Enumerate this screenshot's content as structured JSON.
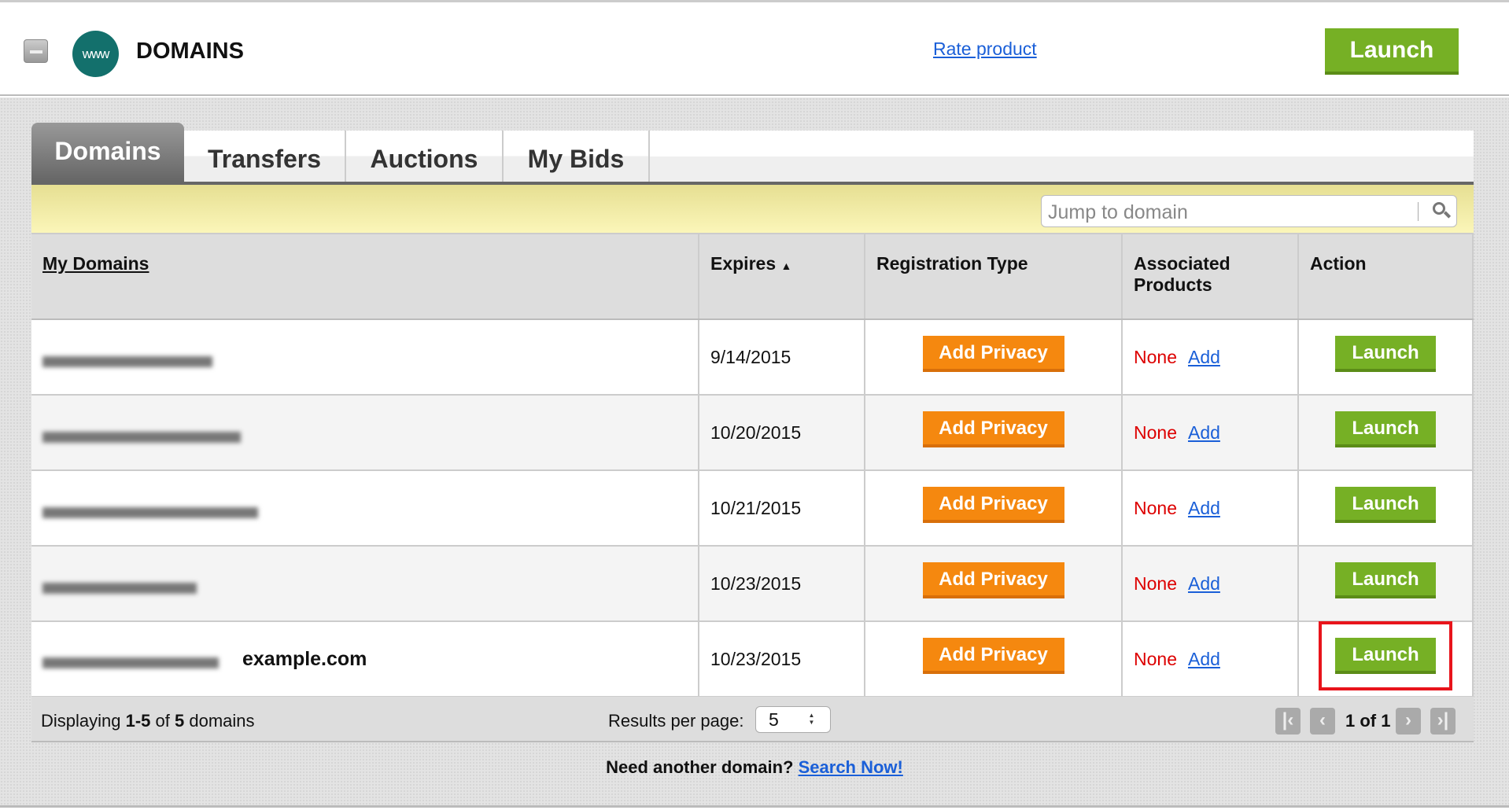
{
  "header": {
    "title": "DOMAINS",
    "logo_text": "www",
    "rate_link": "Rate product",
    "launch_label": "Launch"
  },
  "tabs": [
    {
      "label": "Domains",
      "active": true
    },
    {
      "label": "Transfers"
    },
    {
      "label": "Auctions"
    },
    {
      "label": "My Bids"
    }
  ],
  "search": {
    "placeholder": "Jump to domain"
  },
  "table": {
    "headers": {
      "domain": "My Domains",
      "expires": "Expires",
      "expires_sort": "▲",
      "reg_type": "Registration Type",
      "assoc": "Associated Products",
      "action": "Action"
    },
    "rows": [
      {
        "expires": "9/14/2015",
        "privacy": "Add Privacy",
        "assoc": "None",
        "add": "Add",
        "action": "Launch"
      },
      {
        "expires": "10/20/2015",
        "privacy": "Add Privacy",
        "assoc": "None",
        "add": "Add",
        "action": "Launch"
      },
      {
        "expires": "10/21/2015",
        "privacy": "Add Privacy",
        "assoc": "None",
        "add": "Add",
        "action": "Launch"
      },
      {
        "expires": "10/23/2015",
        "privacy": "Add Privacy",
        "assoc": "None",
        "add": "Add",
        "action": "Launch"
      },
      {
        "expires": "10/23/2015",
        "label": "example.com",
        "privacy": "Add Privacy",
        "assoc": "None",
        "add": "Add",
        "action": "Launch",
        "highlighted": true
      }
    ]
  },
  "footer": {
    "displaying_prefix": "Displaying ",
    "range": "1-5",
    "of": " of ",
    "total": "5",
    "suffix": " domains",
    "results_label": "Results per page:",
    "per_page": "5",
    "page_info": "1 of 1"
  },
  "bottom": {
    "prompt": "Need another domain?",
    "link": "Search Now!"
  },
  "colors": {
    "launch": "#76b025",
    "privacy": "#f5880f",
    "none": "#dd0000",
    "link": "#1a5fd8",
    "highlight": "#e8141b"
  }
}
